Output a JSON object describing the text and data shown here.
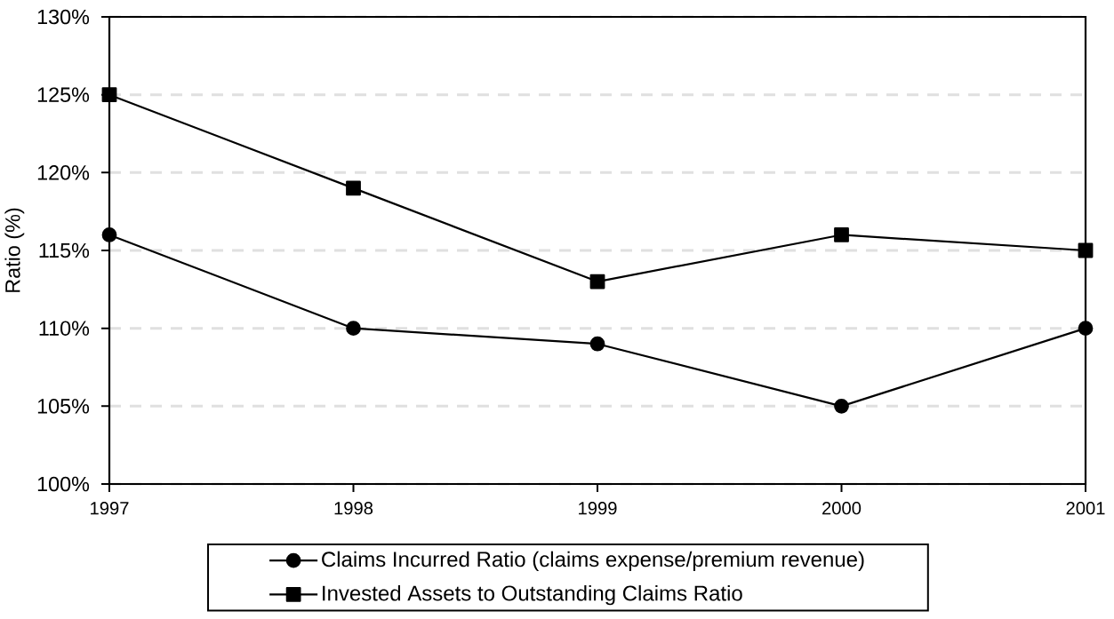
{
  "chart_data": {
    "type": "line",
    "ylabel": "Ratio (%)",
    "categories": [
      "1997",
      "1998",
      "1999",
      "2000",
      "2001"
    ],
    "series": [
      {
        "name": "Claims Incurred Ratio (claims expense/premium revenue)",
        "color": "#000000",
        "marker": "circle",
        "values": [
          116,
          110,
          109,
          105,
          110
        ]
      },
      {
        "name": "Invested Assets to Outstanding Claims Ratio",
        "color": "#000000",
        "marker": "square",
        "values": [
          125,
          119,
          113,
          116,
          115
        ]
      }
    ],
    "ylim": [
      100,
      130
    ],
    "yticks": [
      {
        "value": 100,
        "label": "100%"
      },
      {
        "value": 105,
        "label": "105%"
      },
      {
        "value": 110,
        "label": "110%"
      },
      {
        "value": 115,
        "label": "115%"
      },
      {
        "value": 120,
        "label": "120%"
      },
      {
        "value": 125,
        "label": "125%"
      },
      {
        "value": 130,
        "label": "130%"
      }
    ],
    "grid": "y",
    "legend": "bottom",
    "line_style": "solid"
  }
}
